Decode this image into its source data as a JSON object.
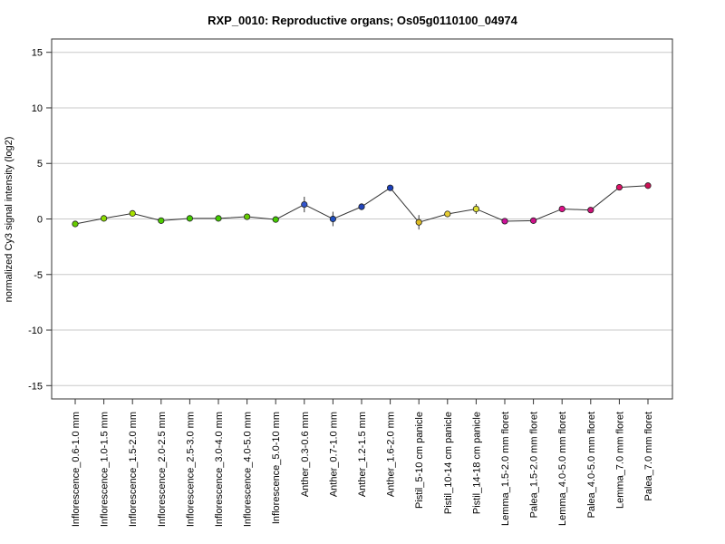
{
  "chart_data": {
    "type": "line",
    "title": "RXP_0010: Reproductive organs; Os05g0110100_04974",
    "xlabel": "",
    "ylabel": "normalized Cy3 signal intensity (log2)",
    "ylim": [
      -16.2,
      16.2
    ],
    "yticks": [
      15,
      10,
      5,
      0,
      -5,
      -10,
      -15
    ],
    "grid": "horizontal",
    "legend": "none",
    "categories": [
      "Inflorescence_0.6-1.0 mm",
      "Inflorescence_1.0-1.5 mm",
      "Inflorescence_1.5-2.0 mm",
      "Inflorescence_2.0-2.5 mm",
      "Inflorescence_2.5-3.0 mm",
      "Inflorescence_3.0-4.0 mm",
      "Inflorescence_4.0-5.0 mm",
      "Inflorescence_5.0-10 mm",
      "Anther_0.3-0.6 mm",
      "Anther_0.7-1.0 mm",
      "Anther_1.2-1.5 mm",
      "Anther_1.6-2.0 mm",
      "Pistil_5-10 cm panicle",
      "Pistil_10-14 cm panicle",
      "Pistil_14-18 cm panicle",
      "Lemma_1.5-2.0 mm floret",
      "Palea_1.5-2.0 mm floret",
      "Lemma_4.0-5.0 mm floret",
      "Palea_4.0-5.0 mm floret",
      "Lemma_7.0 mm floret",
      "Palea_7.0 mm floret"
    ],
    "values": [
      -0.45,
      0.05,
      0.5,
      -0.15,
      0.05,
      0.05,
      0.2,
      -0.05,
      1.3,
      0.0,
      1.1,
      2.8,
      -0.3,
      0.45,
      0.9,
      -0.2,
      -0.15,
      0.9,
      0.8,
      2.85,
      3.0
    ],
    "error": [
      0.1,
      0.1,
      0.2,
      0.1,
      0.15,
      0.15,
      0.15,
      0.1,
      0.7,
      0.65,
      0.3,
      0.25,
      0.65,
      0.25,
      0.45,
      0.1,
      0.1,
      0.15,
      0.15,
      0.15,
      0.15
    ],
    "point_colors": [
      "#66cc00",
      "#8cdc00",
      "#a6e000",
      "#4ccc00",
      "#44cc00",
      "#44cc00",
      "#66cc00",
      "#44cc00",
      "#3355cc",
      "#1f4fc0",
      "#2244bb",
      "#1b3fbb",
      "#ddbb22",
      "#e6cc33",
      "#dddd33",
      "#cc1199",
      "#cc1188",
      "#dd1188",
      "#cc1177",
      "#dd1166",
      "#cc1155"
    ],
    "line_color": "#333333"
  }
}
